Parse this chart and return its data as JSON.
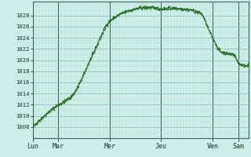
{
  "background_color": "#cceee8",
  "line_color": "#2d6e2d",
  "grid_minor_color": "#b8ddd4",
  "grid_major_color": "#88bbaa",
  "spine_color": "#446655",
  "ylim": [
    1006,
    1030.5
  ],
  "yticks": [
    1008,
    1010,
    1012,
    1014,
    1016,
    1018,
    1020,
    1022,
    1024,
    1026,
    1028
  ],
  "xtick_labels": [
    "Lun",
    "Mar",
    "Mer",
    "Jeu",
    "Ven",
    "Sam"
  ],
  "xtick_positions": [
    0,
    30,
    90,
    150,
    210,
    240
  ],
  "total_steps": 252,
  "curve_tp": [
    0,
    10,
    25,
    45,
    70,
    90,
    115,
    135,
    150,
    165,
    180,
    195,
    210,
    220,
    228,
    235,
    240,
    248
  ],
  "curve_pp": [
    1008,
    1009.5,
    1011.5,
    1013.5,
    1021,
    1027,
    1029,
    1029.5,
    1029.2,
    1029.3,
    1029.1,
    1028.5,
    1024,
    1021.5,
    1021.2,
    1021,
    1019.5,
    1019
  ]
}
